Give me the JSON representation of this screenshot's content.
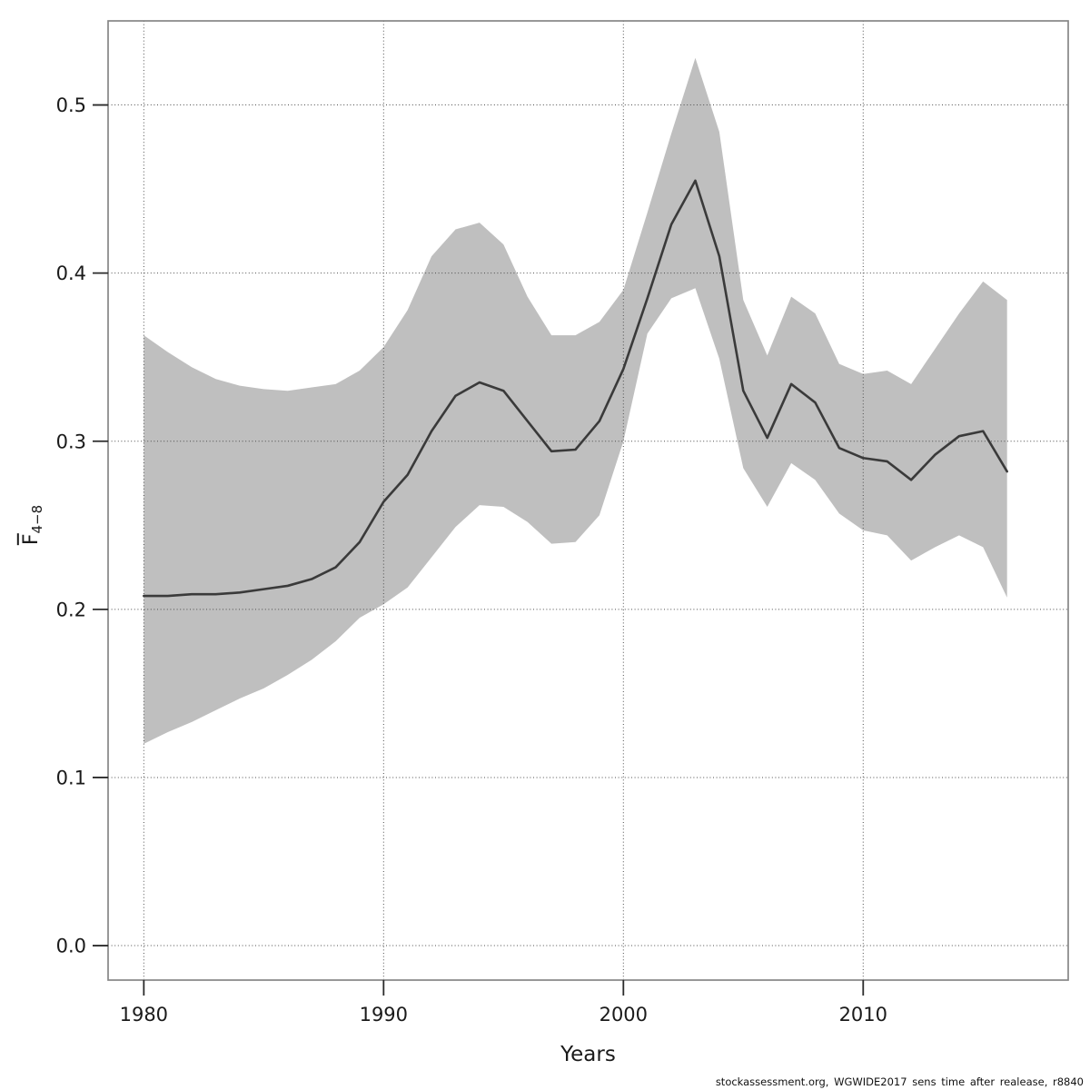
{
  "figure": {
    "xlabel": "Years",
    "ylabel_base": "F",
    "ylabel_sub": "4−8",
    "caption": "stockassessment.org, WGWIDE2017 sens time after realease, r8840"
  },
  "chart_data": {
    "type": "line",
    "title": "",
    "xlabel": "Years",
    "ylabel": "Fbar(4-8) with overline, mean F ages 4-8",
    "grid": true,
    "legend_position": "none",
    "band_color": "#bfbfbf",
    "line_color": "#3a3a3a",
    "xlim": [
      1978.51,
      2018.55
    ],
    "ylim": [
      -0.0205,
      0.55
    ],
    "x_ticks": [
      1980,
      1990,
      2000,
      2010
    ],
    "y_ticks": [
      0.0,
      0.1,
      0.2,
      0.3,
      0.4,
      0.5
    ],
    "x": [
      1980,
      1981,
      1982,
      1983,
      1984,
      1985,
      1986,
      1987,
      1988,
      1989,
      1990,
      1991,
      1992,
      1993,
      1994,
      1995,
      1996,
      1997,
      1998,
      1999,
      2000,
      2001,
      2002,
      2003,
      2004,
      2005,
      2006,
      2007,
      2008,
      2009,
      2010,
      2011,
      2012,
      2013,
      2014,
      2015,
      2016
    ],
    "series": [
      {
        "name": "Fbar estimate",
        "values": [
          0.208,
          0.208,
          0.209,
          0.209,
          0.21,
          0.212,
          0.214,
          0.218,
          0.225,
          0.24,
          0.264,
          0.28,
          0.306,
          0.327,
          0.335,
          0.33,
          0.312,
          0.294,
          0.295,
          0.312,
          0.343,
          0.385,
          0.429,
          0.455,
          0.41,
          0.33,
          0.302,
          0.334,
          0.323,
          0.296,
          0.29,
          0.288,
          0.277,
          0.292,
          0.303,
          0.306,
          0.282
        ]
      },
      {
        "name": "upper confidence bound",
        "values": [
          0.363,
          0.353,
          0.344,
          0.337,
          0.333,
          0.331,
          0.33,
          0.332,
          0.334,
          0.342,
          0.356,
          0.378,
          0.41,
          0.426,
          0.43,
          0.417,
          0.386,
          0.363,
          0.363,
          0.371,
          0.39,
          0.436,
          0.483,
          0.528,
          0.484,
          0.384,
          0.351,
          0.386,
          0.376,
          0.346,
          0.34,
          0.342,
          0.334,
          0.355,
          0.376,
          0.395,
          0.384
        ]
      },
      {
        "name": "lower confidence bound",
        "values": [
          0.12,
          0.127,
          0.133,
          0.14,
          0.147,
          0.153,
          0.161,
          0.17,
          0.181,
          0.195,
          0.203,
          0.213,
          0.231,
          0.249,
          0.262,
          0.261,
          0.252,
          0.239,
          0.24,
          0.256,
          0.3,
          0.364,
          0.385,
          0.391,
          0.349,
          0.284,
          0.261,
          0.287,
          0.277,
          0.257,
          0.247,
          0.244,
          0.229,
          0.237,
          0.244,
          0.237,
          0.207
        ]
      }
    ]
  }
}
